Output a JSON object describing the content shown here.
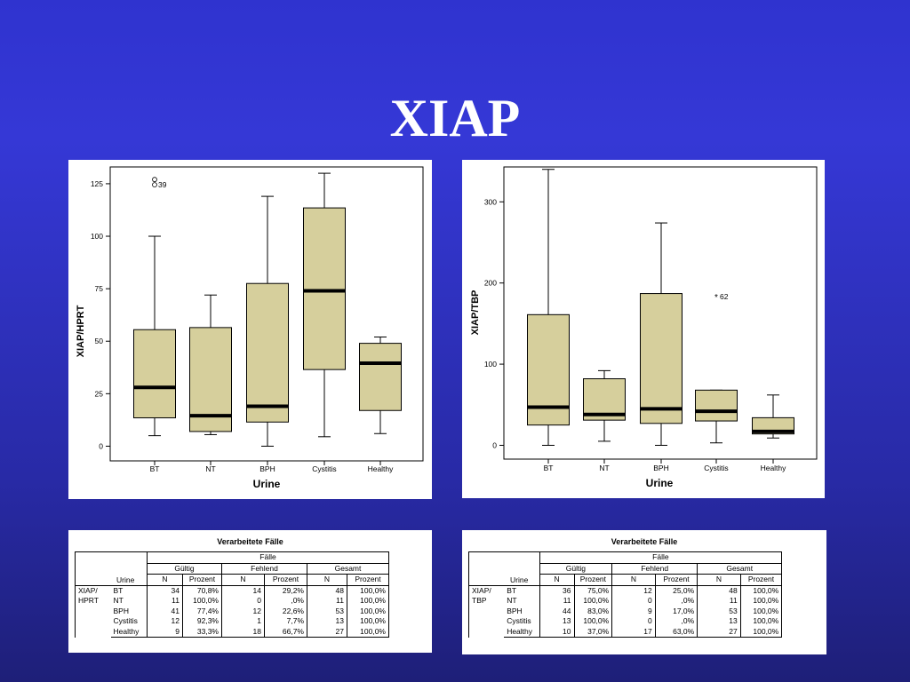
{
  "slide": {
    "title": "XIAP"
  },
  "chart_data": [
    {
      "type": "box",
      "ylabel": "XIAP/HPRT",
      "xlabel": "Urine",
      "ylim": [
        -7,
        133
      ],
      "yticks": [
        0,
        25,
        50,
        75,
        100,
        125
      ],
      "categories": [
        "BT",
        "NT",
        "BPH",
        "Cystitis",
        "Healthy"
      ],
      "boxes": [
        {
          "category": "BT",
          "whisker_low": 5,
          "q1": 13.5,
          "median": 28,
          "q3": 55.5,
          "whisker_high": 100
        },
        {
          "category": "NT",
          "whisker_low": 5.5,
          "q1": 7,
          "median": 14.5,
          "q3": 56.5,
          "whisker_high": 72
        },
        {
          "category": "BPH",
          "whisker_low": 0,
          "q1": 11.5,
          "median": 19,
          "q3": 77.5,
          "whisker_high": 119
        },
        {
          "category": "Cystitis",
          "whisker_low": 4.5,
          "q1": 36.5,
          "median": 74,
          "q3": 113.5,
          "whisker_high": 130
        },
        {
          "category": "Healthy",
          "whisker_low": 6,
          "q1": 17,
          "median": 39.5,
          "q3": 49,
          "whisker_high": 52
        }
      ],
      "outliers": [
        {
          "category": "BT",
          "value": 127,
          "marker": "circle",
          "label": ""
        },
        {
          "category": "BT",
          "value": 124.5,
          "marker": "circle",
          "label": "39"
        }
      ]
    },
    {
      "type": "box",
      "ylabel": "XIAP/TBP",
      "xlabel": "Urine",
      "ylim": [
        -17,
        343
      ],
      "yticks": [
        0,
        100,
        200,
        300
      ],
      "categories": [
        "BT",
        "NT",
        "BPH",
        "Cystitis",
        "Healthy"
      ],
      "boxes": [
        {
          "category": "BT",
          "whisker_low": 0,
          "q1": 25,
          "median": 47,
          "q3": 161,
          "whisker_high": 340
        },
        {
          "category": "NT",
          "whisker_low": 5,
          "q1": 31,
          "median": 38,
          "q3": 82,
          "whisker_high": 92
        },
        {
          "category": "BPH",
          "whisker_low": 0,
          "q1": 27,
          "median": 45,
          "q3": 187,
          "whisker_high": 274
        },
        {
          "category": "Cystitis",
          "whisker_low": 3,
          "q1": 30,
          "median": 42,
          "q3": 68,
          "whisker_high": 68
        },
        {
          "category": "Healthy",
          "whisker_low": 9,
          "q1": 14,
          "median": 17,
          "q3": 34,
          "whisker_high": 62
        }
      ],
      "outliers": [
        {
          "category": "Cystitis",
          "value": 183,
          "marker": "star",
          "label": "62"
        }
      ]
    }
  ],
  "tables": [
    {
      "title": "Verarbeitete Fälle",
      "faelle": "Fälle",
      "groups": [
        "Gültig",
        "Fehlend",
        "Gesamt"
      ],
      "row_header": "Urine",
      "variable": [
        "XIAP/",
        "HPRT"
      ],
      "subheaders": [
        "N",
        "Prozent",
        "N",
        "Prozent",
        "N",
        "Prozent"
      ],
      "rows": [
        {
          "label": "BT",
          "cells": [
            "34",
            "70,8%",
            "14",
            "29,2%",
            "48",
            "100,0%"
          ]
        },
        {
          "label": "NT",
          "cells": [
            "11",
            "100,0%",
            "0",
            ",0%",
            "11",
            "100,0%"
          ]
        },
        {
          "label": "BPH",
          "cells": [
            "41",
            "77,4%",
            "12",
            "22,6%",
            "53",
            "100,0%"
          ]
        },
        {
          "label": "Cystitis",
          "cells": [
            "12",
            "92,3%",
            "1",
            "7,7%",
            "13",
            "100,0%"
          ]
        },
        {
          "label": "Healthy",
          "cells": [
            "9",
            "33,3%",
            "18",
            "66,7%",
            "27",
            "100,0%"
          ]
        }
      ]
    },
    {
      "title": "Verarbeitete Fälle",
      "faelle": "Fälle",
      "groups": [
        "Gültig",
        "Fehlend",
        "Gesamt"
      ],
      "row_header": "Urine",
      "variable": [
        "XIAP/",
        "TBP"
      ],
      "subheaders": [
        "N",
        "Prozent",
        "N",
        "Prozent",
        "N",
        "Prozent"
      ],
      "rows": [
        {
          "label": "BT",
          "cells": [
            "36",
            "75,0%",
            "12",
            "25,0%",
            "48",
            "100,0%"
          ]
        },
        {
          "label": "NT",
          "cells": [
            "11",
            "100,0%",
            "0",
            ",0%",
            "11",
            "100,0%"
          ]
        },
        {
          "label": "BPH",
          "cells": [
            "44",
            "83,0%",
            "9",
            "17,0%",
            "53",
            "100,0%"
          ]
        },
        {
          "label": "Cystitis",
          "cells": [
            "13",
            "100,0%",
            "0",
            ",0%",
            "13",
            "100,0%"
          ]
        },
        {
          "label": "Healthy",
          "cells": [
            "10",
            "37,0%",
            "17",
            "63,0%",
            "27",
            "100,0%"
          ]
        }
      ]
    }
  ],
  "colors": {
    "box_fill": "#d6cf9c",
    "stroke": "#000000",
    "median": "#000000"
  }
}
